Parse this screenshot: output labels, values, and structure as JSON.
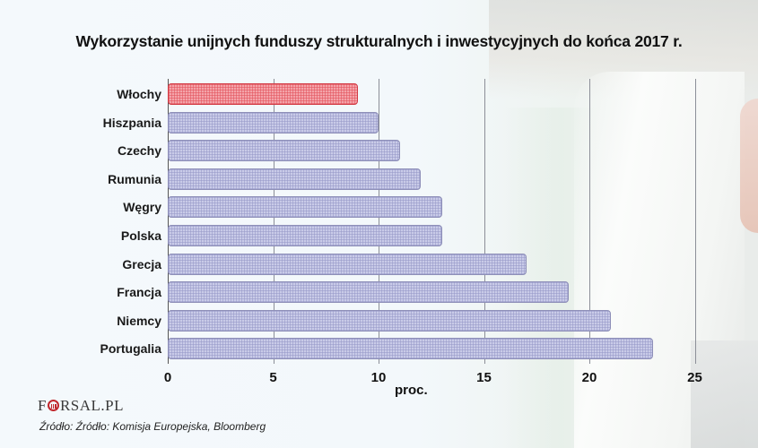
{
  "title": "Wykorzystanie unijnych funduszy strukturalnych i inwestycyjnych do końca 2017 r.",
  "axis": {
    "xlabel": "proc.",
    "ticks": [
      "0",
      "5",
      "10",
      "15",
      "20",
      "25"
    ]
  },
  "rows": [
    {
      "label": "Włochy",
      "value": 9,
      "highlight": true
    },
    {
      "label": "Hiszpania",
      "value": 10,
      "highlight": false
    },
    {
      "label": "Czechy",
      "value": 11,
      "highlight": false
    },
    {
      "label": "Rumunia",
      "value": 12,
      "highlight": false
    },
    {
      "label": "Węgry",
      "value": 13,
      "highlight": false
    },
    {
      "label": "Polska",
      "value": 13,
      "highlight": false
    },
    {
      "label": "Grecja",
      "value": 17,
      "highlight": false
    },
    {
      "label": "Francja",
      "value": 19,
      "highlight": false
    },
    {
      "label": "Niemcy",
      "value": 21,
      "highlight": false
    },
    {
      "label": "Portugalia",
      "value": 23,
      "highlight": false
    }
  ],
  "footer": {
    "logo_pre": "F",
    "logo_post": "RSAL.PL",
    "source": "Źródło: Źródło: Komisja Europejska, Bloomberg"
  },
  "colors": {
    "bar": "#c9cbe8",
    "bar_highlight": "#f4a4aa",
    "highlight_border": "#d13a44"
  },
  "chart_data": {
    "type": "bar",
    "orientation": "horizontal",
    "title": "Wykorzystanie unijnych funduszy strukturalnych i inwestycyjnych do końca 2017 r.",
    "categories": [
      "Włochy",
      "Hiszpania",
      "Czechy",
      "Rumunia",
      "Węgry",
      "Polska",
      "Grecja",
      "Francja",
      "Niemcy",
      "Portugalia"
    ],
    "values": [
      9,
      10,
      11,
      12,
      13,
      13,
      17,
      19,
      21,
      23
    ],
    "xlabel": "proc.",
    "ylabel": "",
    "xlim": [
      0,
      25
    ],
    "x_ticks": [
      0,
      5,
      10,
      15,
      20,
      25
    ],
    "grid": "vertical",
    "legend": null,
    "highlighted_category": "Włochy",
    "source": "Źródło: Źródło: Komisja Europejska, Bloomberg"
  }
}
